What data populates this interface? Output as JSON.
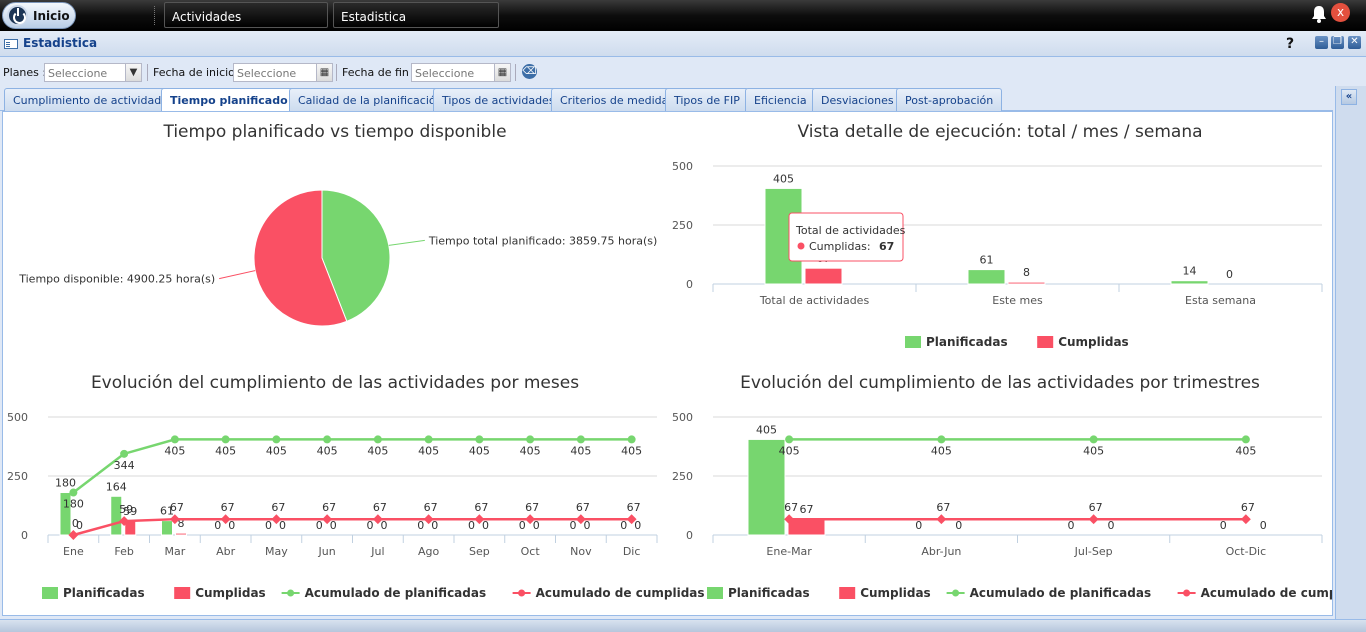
{
  "taskbar": {
    "start_label": "Inicio",
    "tasks": [
      "Actividades",
      "Estadistica"
    ],
    "close_symbol": "x"
  },
  "window": {
    "title": "Estadistica",
    "help": "?"
  },
  "filters": {
    "planes_label": "Planes :",
    "planes_placeholder": "Seleccione",
    "fecha_inicio_label": "Fecha de inicio :",
    "fecha_inicio_placeholder": "Seleccione",
    "fecha_fin_label": "Fecha de fin :",
    "fecha_fin_placeholder": "Seleccione"
  },
  "tabs": [
    "Cumplimiento de actividades",
    "Tiempo planificado",
    "Calidad de la planificación",
    "Tipos de actividades",
    "Criterios de medida",
    "Tipos de FIP",
    "Eficiencia",
    "Desviaciones",
    "Post-aprobación"
  ],
  "active_tab": "Tiempo planificado",
  "colors": {
    "planificadas": "#77d66f",
    "cumplidas": "#fa5064",
    "accent": "#15428b"
  },
  "chart_data": [
    {
      "type": "pie",
      "title": "Tiempo planificado vs tiempo disponible",
      "slices": [
        {
          "label": "Tiempo total planificado: 3859.75 hora(s)",
          "value": 3859.75,
          "color": "#77d66f"
        },
        {
          "label": "Tiempo disponible: 4900.25 hora(s)",
          "value": 4900.25,
          "color": "#fa5064"
        }
      ]
    },
    {
      "type": "bar",
      "title": "Vista detalle de ejecución: total / mes / semana",
      "categories": [
        "Total de actividades",
        "Este mes",
        "Esta semana"
      ],
      "series": [
        {
          "name": "Planificadas",
          "values": [
            405,
            61,
            14
          ],
          "color": "#77d66f"
        },
        {
          "name": "Cumplidas",
          "values": [
            67,
            8,
            0
          ],
          "color": "#fa5064"
        }
      ],
      "ylim": [
        0,
        500
      ],
      "yticks": [
        "0",
        "250",
        "500"
      ],
      "tooltip": {
        "title": "Total de actividades",
        "series": "Cumplidas",
        "value": "67"
      },
      "legend": "bottom"
    },
    {
      "type": "bar",
      "title": "Evolución del cumplimiento de las actividades por meses",
      "categories": [
        "Ene",
        "Feb",
        "Mar",
        "Abr",
        "May",
        "Jun",
        "Jul",
        "Ago",
        "Sep",
        "Oct",
        "Nov",
        "Dic"
      ],
      "series": [
        {
          "name": "Planificadas",
          "kind": "bar",
          "values": [
            180,
            164,
            61,
            0,
            0,
            0,
            0,
            0,
            0,
            0,
            0,
            0
          ],
          "color": "#77d66f"
        },
        {
          "name": "Cumplidas",
          "kind": "bar",
          "values": [
            0,
            59,
            8,
            0,
            0,
            0,
            0,
            0,
            0,
            0,
            0,
            0
          ],
          "color": "#fa5064"
        },
        {
          "name": "Acumulado de planificadas",
          "kind": "line",
          "values": [
            180,
            344,
            405,
            405,
            405,
            405,
            405,
            405,
            405,
            405,
            405,
            405
          ],
          "color": "#77d66f"
        },
        {
          "name": "Acumulado de cumplidas",
          "kind": "line",
          "values": [
            0,
            59,
            67,
            67,
            67,
            67,
            67,
            67,
            67,
            67,
            67,
            67
          ],
          "color": "#fa5064"
        }
      ],
      "ylim": [
        0,
        500
      ],
      "yticks": [
        "0",
        "250",
        "500"
      ],
      "legend": "bottom"
    },
    {
      "type": "bar",
      "title": "Evolución del cumplimiento de las actividades por trimestres",
      "categories": [
        "Ene-Mar",
        "Abr-Jun",
        "Jul-Sep",
        "Oct-Dic"
      ],
      "series": [
        {
          "name": "Planificadas",
          "kind": "bar",
          "values": [
            405,
            0,
            0,
            0
          ],
          "color": "#77d66f"
        },
        {
          "name": "Cumplidas",
          "kind": "bar",
          "values": [
            67,
            0,
            0,
            0
          ],
          "color": "#fa5064"
        },
        {
          "name": "Acumulado de planificadas",
          "kind": "line",
          "values": [
            405,
            405,
            405,
            405
          ],
          "color": "#77d66f"
        },
        {
          "name": "Acumulado de cumplidas",
          "kind": "line",
          "values": [
            67,
            67,
            67,
            67
          ],
          "color": "#fa5064"
        }
      ],
      "ylim": [
        0,
        500
      ],
      "yticks": [
        "0",
        "250",
        "500"
      ],
      "legend": "bottom"
    }
  ]
}
